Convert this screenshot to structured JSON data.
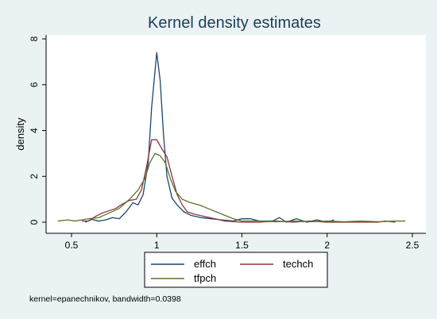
{
  "chart_data": {
    "type": "line",
    "title": "Kernel density estimates",
    "xlabel": "",
    "ylabel": "density",
    "xlim": [
      0.4,
      2.5
    ],
    "ylim": [
      0,
      8
    ],
    "x_ticks": [
      "0.5",
      "1",
      "1.5",
      "2",
      "2.5"
    ],
    "y_ticks": [
      "0",
      "2",
      "4",
      "6",
      "8"
    ],
    "grid": false,
    "legend_position": "bottom",
    "note": "kernel=epanechnikov, bandwidth=0.0398",
    "series": [
      {
        "name": "effch",
        "color": "#1a476f",
        "points": [
          [
            0.58,
            0.0
          ],
          [
            0.62,
            0.12
          ],
          [
            0.66,
            0.05
          ],
          [
            0.7,
            0.1
          ],
          [
            0.74,
            0.2
          ],
          [
            0.78,
            0.15
          ],
          [
            0.82,
            0.45
          ],
          [
            0.86,
            0.85
          ],
          [
            0.89,
            0.75
          ],
          [
            0.92,
            1.2
          ],
          [
            0.95,
            2.6
          ],
          [
            0.97,
            5.0
          ],
          [
            1.0,
            7.4
          ],
          [
            1.02,
            6.2
          ],
          [
            1.04,
            3.8
          ],
          [
            1.06,
            2.0
          ],
          [
            1.09,
            1.05
          ],
          [
            1.12,
            0.75
          ],
          [
            1.16,
            0.45
          ],
          [
            1.2,
            0.3
          ],
          [
            1.26,
            0.2
          ],
          [
            1.32,
            0.15
          ],
          [
            1.38,
            0.1
          ],
          [
            1.45,
            0.05
          ],
          [
            1.5,
            0.15
          ],
          [
            1.55,
            0.15
          ],
          [
            1.6,
            0.05
          ],
          [
            1.68,
            0.05
          ],
          [
            1.72,
            0.2
          ],
          [
            1.76,
            0.0
          ],
          [
            1.82,
            0.15
          ],
          [
            1.88,
            0.0
          ],
          [
            1.94,
            0.1
          ],
          [
            2.0,
            0.0
          ],
          [
            2.04,
            0.1
          ]
        ]
      },
      {
        "name": "techch",
        "color": "#90353b",
        "points": [
          [
            0.56,
            0.05
          ],
          [
            0.6,
            0.05
          ],
          [
            0.64,
            0.25
          ],
          [
            0.68,
            0.4
          ],
          [
            0.72,
            0.5
          ],
          [
            0.76,
            0.6
          ],
          [
            0.8,
            0.8
          ],
          [
            0.84,
            0.95
          ],
          [
            0.88,
            1.0
          ],
          [
            0.91,
            1.4
          ],
          [
            0.94,
            2.4
          ],
          [
            0.97,
            3.6
          ],
          [
            1.0,
            3.6
          ],
          [
            1.03,
            3.2
          ],
          [
            1.06,
            2.85
          ],
          [
            1.09,
            2.0
          ],
          [
            1.12,
            1.2
          ],
          [
            1.15,
            0.75
          ],
          [
            1.18,
            0.45
          ],
          [
            1.22,
            0.35
          ],
          [
            1.28,
            0.25
          ],
          [
            1.34,
            0.15
          ],
          [
            1.4,
            0.05
          ],
          [
            1.5,
            0.0
          ],
          [
            1.6,
            0.0
          ],
          [
            1.7,
            0.05
          ],
          [
            1.8,
            0.0
          ],
          [
            1.9,
            0.05
          ],
          [
            2.0,
            0.0
          ],
          [
            2.1,
            0.0
          ],
          [
            2.2,
            0.0
          ],
          [
            2.3,
            0.0
          ],
          [
            2.34,
            0.05
          ],
          [
            2.4,
            0.0
          ]
        ]
      },
      {
        "name": "tfpch",
        "color": "#55752f",
        "points": [
          [
            0.42,
            0.05
          ],
          [
            0.48,
            0.1
          ],
          [
            0.52,
            0.05
          ],
          [
            0.56,
            0.1
          ],
          [
            0.6,
            0.15
          ],
          [
            0.66,
            0.2
          ],
          [
            0.72,
            0.4
          ],
          [
            0.78,
            0.6
          ],
          [
            0.84,
            1.0
          ],
          [
            0.89,
            1.4
          ],
          [
            0.93,
            1.9
          ],
          [
            0.96,
            2.6
          ],
          [
            0.99,
            3.0
          ],
          [
            1.02,
            2.9
          ],
          [
            1.05,
            2.6
          ],
          [
            1.08,
            1.9
          ],
          [
            1.11,
            1.35
          ],
          [
            1.15,
            1.0
          ],
          [
            1.2,
            0.85
          ],
          [
            1.25,
            0.75
          ],
          [
            1.3,
            0.6
          ],
          [
            1.35,
            0.45
          ],
          [
            1.4,
            0.3
          ],
          [
            1.45,
            0.15
          ],
          [
            1.5,
            0.05
          ],
          [
            1.6,
            0.05
          ],
          [
            1.7,
            0.02
          ],
          [
            1.8,
            0.05
          ],
          [
            1.9,
            0.02
          ],
          [
            2.0,
            0.05
          ],
          [
            2.1,
            0.02
          ],
          [
            2.2,
            0.05
          ],
          [
            2.3,
            0.02
          ],
          [
            2.4,
            0.05
          ],
          [
            2.46,
            0.05
          ]
        ]
      }
    ]
  },
  "legend": [
    {
      "label": "effch",
      "color": "#1a476f"
    },
    {
      "label": "techch",
      "color": "#90353b"
    },
    {
      "label": "tfpch",
      "color": "#55752f"
    }
  ]
}
